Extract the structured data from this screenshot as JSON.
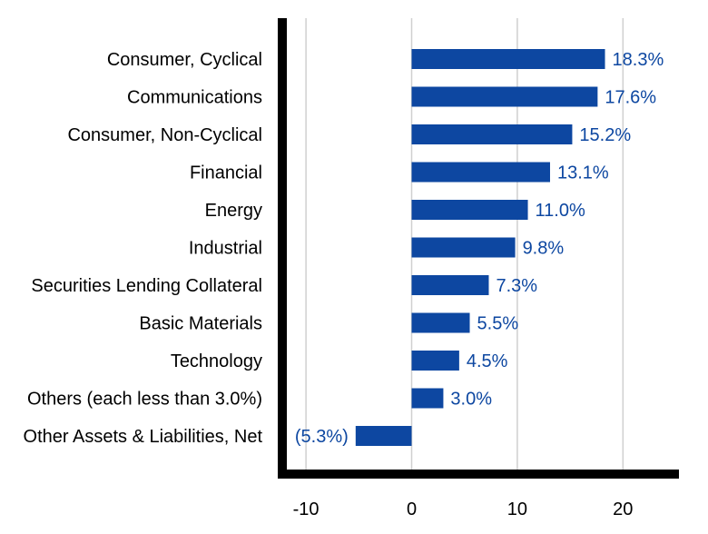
{
  "chart_data": {
    "type": "bar",
    "orientation": "horizontal",
    "categories": [
      "Consumer, Cyclical",
      "Communications",
      "Consumer, Non-Cyclical",
      "Financial",
      "Energy",
      "Industrial",
      "Securities Lending Collateral",
      "Basic Materials",
      "Technology",
      "Others (each less than 3.0%)",
      "Other Assets & Liabilities, Net"
    ],
    "values": [
      18.3,
      17.6,
      15.2,
      13.1,
      11.0,
      9.8,
      7.3,
      5.5,
      4.5,
      3.0,
      -5.3
    ],
    "data_labels": [
      "18.3%",
      "17.6%",
      "15.2%",
      "13.1%",
      "11.0%",
      "9.8%",
      "7.3%",
      "5.5%",
      "4.5%",
      "3.0%",
      "(5.3%)"
    ],
    "x_ticks": [
      -10,
      0,
      10,
      20
    ],
    "x_tick_labels": [
      "-10",
      "0",
      "10",
      "20"
    ],
    "xlim": [
      -12.5,
      25.3
    ],
    "title": "",
    "xlabel": "",
    "ylabel": "",
    "grid": "vertical",
    "legend": "none",
    "colors": {
      "bar": "#0d47a1",
      "label": "#0d47a1",
      "grid": "#d0d0d0",
      "axis": "#000000"
    }
  }
}
